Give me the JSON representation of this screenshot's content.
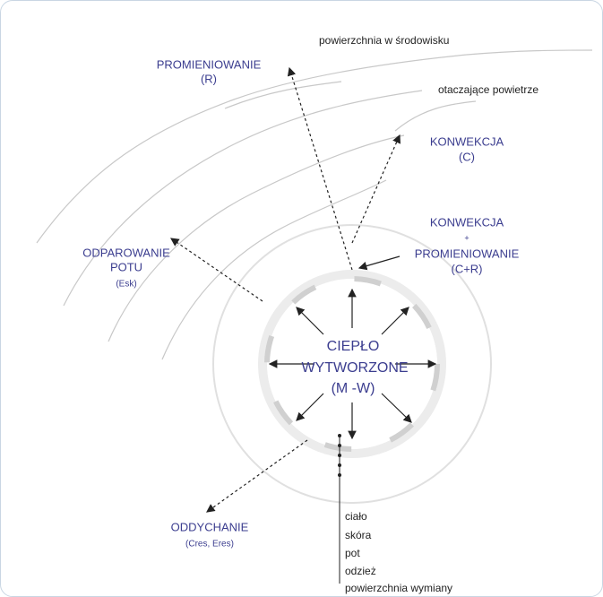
{
  "environment": {
    "surface": "powierzchnia w środowisku",
    "air": "otaczające powietrze"
  },
  "paths": {
    "radiation": {
      "lines": [
        "PROMIENIOWANIE",
        "(R)"
      ]
    },
    "convection": {
      "lines": [
        "KONWEKCJA",
        "(C)"
      ]
    },
    "convection_radiation": {
      "lines": [
        "KONWEKCJA",
        "+",
        "PROMIENIOWANIE",
        "(C+R)"
      ]
    },
    "evaporation": {
      "lines": [
        "ODPAROWANIE",
        "POTU",
        "(Esk)"
      ]
    },
    "respiration": {
      "lines": [
        "ODDYCHANIE",
        "(Cres, Eres)"
      ]
    }
  },
  "center": {
    "lines": [
      "CIEPŁO",
      "WYTWORZONE",
      "(M -W)"
    ]
  },
  "layers": [
    "ciało",
    "skóra",
    "pot",
    "odzież",
    "powierzchnia wymiany"
  ]
}
